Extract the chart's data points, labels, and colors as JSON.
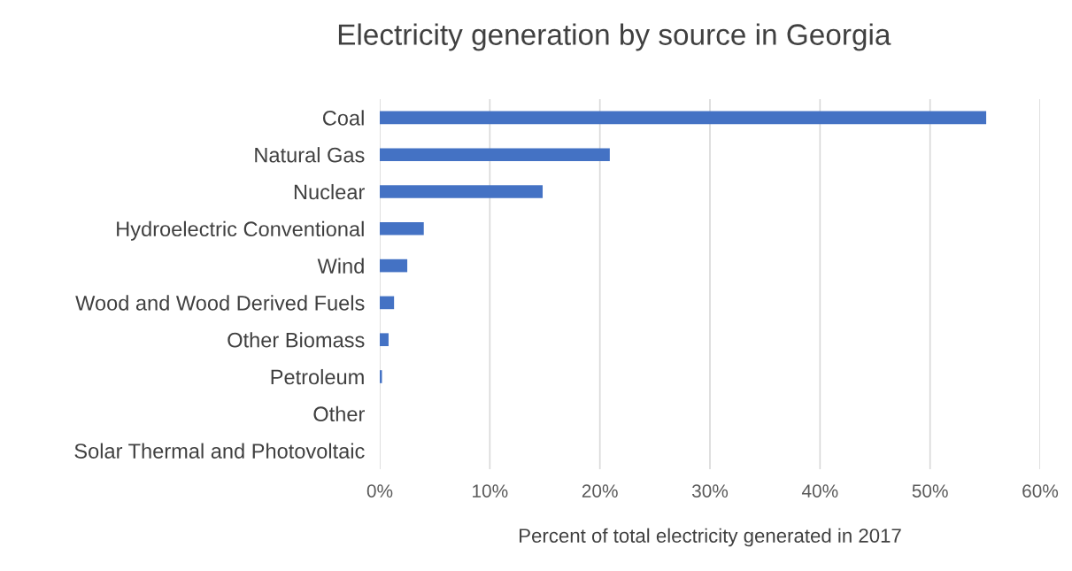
{
  "chart_data": {
    "type": "bar",
    "orientation": "horizontal",
    "title": "Electricity generation by source in Georgia",
    "xlabel": "Percent of total electricity generated in 2017",
    "categories": [
      "Coal",
      "Natural Gas",
      "Nuclear",
      "Hydroelectric Conventional",
      "Wind",
      "Wood and Wood Derived Fuels",
      "Other Biomass",
      "Petroleum",
      "Other",
      "Solar Thermal and Photovoltaic"
    ],
    "values": [
      55.1,
      20.9,
      14.8,
      4.0,
      2.5,
      1.3,
      0.8,
      0.2,
      0,
      0
    ],
    "color": "#4472c4",
    "xlim": [
      0,
      60
    ],
    "xticks": [
      {
        "value": 0,
        "label": "0%"
      },
      {
        "value": 10,
        "label": "10%"
      },
      {
        "value": 20,
        "label": "20%"
      },
      {
        "value": 30,
        "label": "30%"
      },
      {
        "value": 40,
        "label": "40%"
      },
      {
        "value": 50,
        "label": "50%"
      },
      {
        "value": 60,
        "label": "60%"
      }
    ],
    "grid": "x"
  }
}
